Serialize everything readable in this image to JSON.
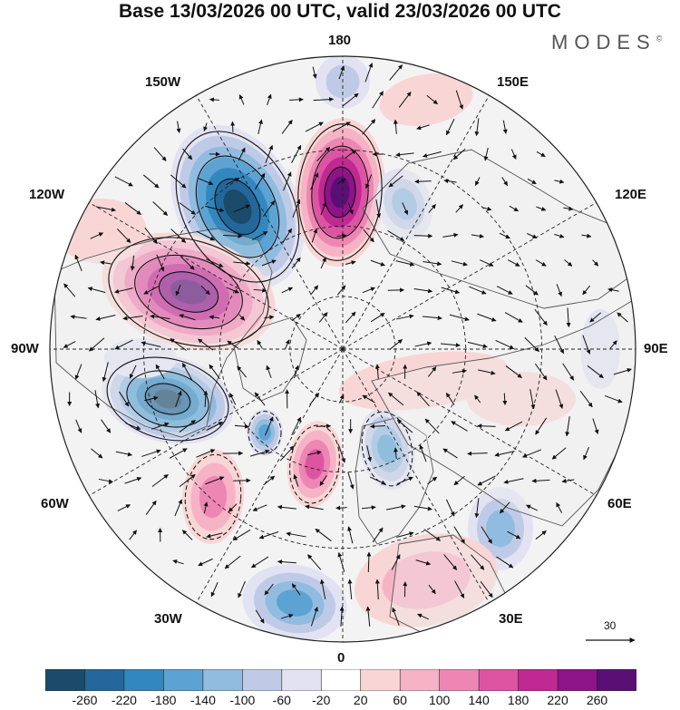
{
  "title": "Base 13/03/2026 00 UTC, valid 23/03/2026 00 UTC",
  "brand": "MODES",
  "brand_mark": "©",
  "longitude_labels": {
    "lon_180": "180",
    "lon_150W": "150W",
    "lon_150E": "150E",
    "lon_120W": "120W",
    "lon_120E": "120E",
    "lon_90W": "90W",
    "lon_90E": "90E",
    "lon_60W": "60W",
    "lon_60E": "60E",
    "lon_30W": "30W",
    "lon_30E": "30E",
    "lon_0": "0"
  },
  "vector_scale": {
    "label": "30"
  },
  "colorbar": {
    "ticks": [
      "-260",
      "-220",
      "-180",
      "-140",
      "-100",
      "-60",
      "-20",
      "20",
      "60",
      "100",
      "140",
      "180",
      "220",
      "260"
    ],
    "colors": [
      "#1b4a6b",
      "#24679a",
      "#3387bf",
      "#5ca3d3",
      "#92bbe0",
      "#bfcbe6",
      "#e2e2f2",
      "#ffffff",
      "#f9d6d6",
      "#f6b3c5",
      "#ee86b3",
      "#dd55a2",
      "#c02892",
      "#8d1487",
      "#5a0f74"
    ]
  },
  "colors": {
    "land_fill": "#ededed",
    "coast": "#555555",
    "grid": "#222222"
  }
}
